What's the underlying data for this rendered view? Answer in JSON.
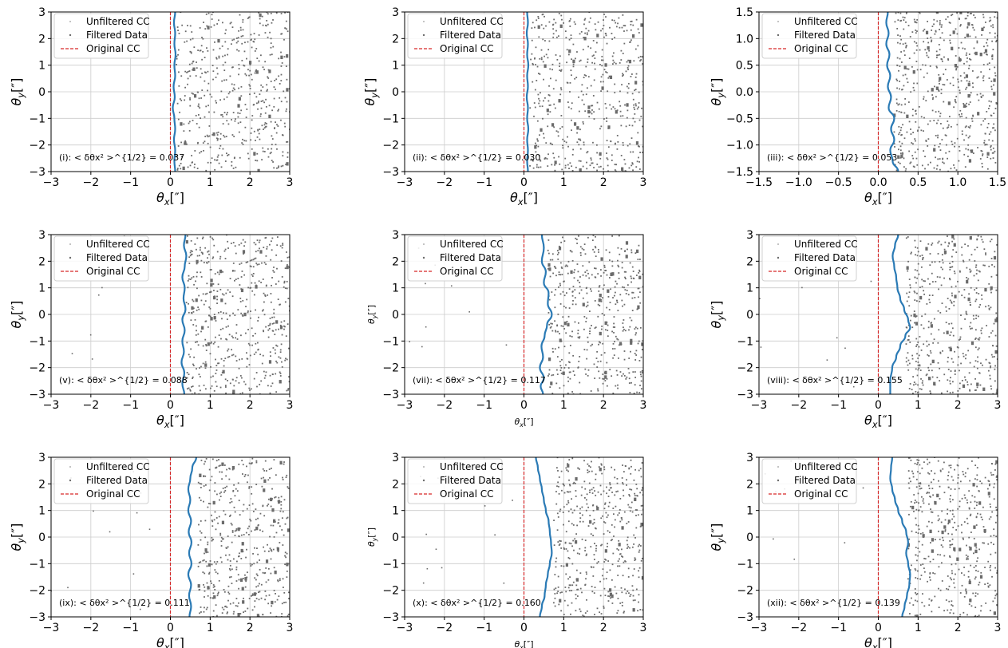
{
  "figure": {
    "legend_items": [
      "Unfiltered CC",
      "Filtered Data",
      "Original CC"
    ]
  },
  "colors": {
    "curve": "#2a7ab5",
    "original_cc": "#d62728",
    "points": "#6b6b6b",
    "grid": "#cccccc"
  },
  "chart_data": [
    {
      "type": "scatter",
      "panel": "(i)",
      "annotation": "(i): < δθx² >^{1/2} = 0.037",
      "xlabel": "θx[″]",
      "ylabel": "θy[″]",
      "xlim": [
        -3,
        3
      ],
      "ylim": [
        -3,
        3
      ],
      "xticks": [
        "−3",
        "−2",
        "−1",
        "0",
        "1",
        "2",
        "3"
      ],
      "yticks": [
        "3",
        "2",
        "1",
        "0",
        "−1",
        "−2",
        "−3"
      ],
      "legend": {
        "entries": [
          "Unfiltered CC",
          "Filtered Data",
          "Original CC"
        ],
        "placement": "top-left"
      },
      "grid": true,
      "original_cc_x": 0,
      "series": [
        {
          "name": "Unfiltered CC",
          "kind": "line",
          "points": [
            [
              0.12,
              3
            ],
            [
              0.09,
              2.6
            ],
            [
              0.12,
              2.2
            ],
            [
              0.1,
              1.8
            ],
            [
              0.13,
              1.4
            ],
            [
              0.1,
              1.0
            ],
            [
              0.12,
              0.6
            ],
            [
              0.08,
              0.2
            ],
            [
              0.11,
              -0.2
            ],
            [
              0.06,
              -0.6
            ],
            [
              0.1,
              -1.0
            ],
            [
              0.12,
              -1.4
            ],
            [
              0.09,
              -1.8
            ],
            [
              0.12,
              -2.2
            ],
            [
              0.1,
              -2.6
            ],
            [
              0.12,
              -3
            ]
          ]
        },
        {
          "name": "Filtered Data",
          "kind": "scatter",
          "x_range": [
            0.15,
            3
          ],
          "count": 520,
          "seed": 1
        }
      ]
    },
    {
      "type": "scatter",
      "panel": "(ii)",
      "annotation": "(ii): < δθx² >^{1/2} = 0.030",
      "xlabel": "θx[″]",
      "ylabel": "θy[″]",
      "xlim": [
        -3,
        3
      ],
      "ylim": [
        -3,
        3
      ],
      "xticks": [
        "−3",
        "−2",
        "−1",
        "0",
        "1",
        "2",
        "3"
      ],
      "yticks": [
        "3",
        "2",
        "1",
        "0",
        "−1",
        "−2",
        "−3"
      ],
      "legend": {
        "entries": [
          "Unfiltered CC",
          "Filtered Data",
          "Original CC"
        ],
        "placement": "top-left"
      },
      "grid": true,
      "original_cc_x": 0,
      "series": [
        {
          "name": "Unfiltered CC",
          "kind": "line",
          "points": [
            [
              0.08,
              3
            ],
            [
              0.1,
              2.6
            ],
            [
              0.07,
              2.2
            ],
            [
              0.1,
              1.8
            ],
            [
              0.08,
              1.4
            ],
            [
              0.11,
              1.0
            ],
            [
              0.08,
              0.6
            ],
            [
              0.1,
              0.2
            ],
            [
              0.07,
              -0.2
            ],
            [
              0.1,
              -0.6
            ],
            [
              0.08,
              -1.0
            ],
            [
              0.11,
              -1.4
            ],
            [
              0.08,
              -1.8
            ],
            [
              0.1,
              -2.2
            ],
            [
              0.08,
              -2.6
            ],
            [
              0.1,
              -3
            ]
          ]
        },
        {
          "name": "Filtered Data",
          "kind": "scatter",
          "x_range": [
            0.15,
            3
          ],
          "count": 520,
          "seed": 2
        }
      ]
    },
    {
      "type": "scatter",
      "panel": "(iii)",
      "annotation": "(iii): < δθx² >^{1/2} = 0.053",
      "xlabel": "θx[″]",
      "ylabel": "θy[″]",
      "xlim": [
        -1.5,
        1.5
      ],
      "ylim": [
        -1.5,
        1.5
      ],
      "xticks": [
        "−1.5",
        "−1.0",
        "−0.5",
        "0.0",
        "0.5",
        "1.0",
        "1.5"
      ],
      "yticks": [
        "1.5",
        "1.0",
        "0.5",
        "0.0",
        "−0.5",
        "−1.0",
        "−1.5"
      ],
      "legend": {
        "entries": [
          "Unfiltered CC",
          "Filtered Data",
          "Original CC"
        ],
        "placement": "top-left"
      },
      "grid": true,
      "original_cc_x": 0,
      "series": [
        {
          "name": "Unfiltered CC",
          "kind": "line",
          "points": [
            [
              0.12,
              1.5
            ],
            [
              0.1,
              1.3
            ],
            [
              0.13,
              1.1
            ],
            [
              0.1,
              0.9
            ],
            [
              0.14,
              0.7
            ],
            [
              0.11,
              0.5
            ],
            [
              0.15,
              0.3
            ],
            [
              0.12,
              0.1
            ],
            [
              0.16,
              -0.1
            ],
            [
              0.13,
              -0.3
            ],
            [
              0.2,
              -0.5
            ],
            [
              0.16,
              -0.7
            ],
            [
              0.2,
              -0.9
            ],
            [
              0.15,
              -1.1
            ],
            [
              0.18,
              -1.3
            ],
            [
              0.25,
              -1.5
            ]
          ]
        },
        {
          "name": "Filtered Data",
          "kind": "scatter",
          "x_range": [
            0.2,
            1.5
          ],
          "count": 560,
          "seed": 3
        }
      ]
    },
    {
      "type": "scatter",
      "panel": "(v)",
      "annotation": "(v): < δθx² >^{1/2} = 0.088",
      "xlabel": "θx[″]",
      "ylabel": "θy[″]",
      "xlim": [
        -3,
        3
      ],
      "ylim": [
        -3,
        3
      ],
      "xticks": [
        "−3",
        "−2",
        "−1",
        "0",
        "1",
        "2",
        "3"
      ],
      "yticks": [
        "3",
        "2",
        "1",
        "0",
        "−1",
        "−2",
        "−3"
      ],
      "legend": {
        "entries": [
          "Unfiltered CC",
          "Filtered Data",
          "Original CC"
        ],
        "placement": "top-left"
      },
      "grid": true,
      "original_cc_x": 0,
      "series": [
        {
          "name": "Unfiltered CC",
          "kind": "line",
          "points": [
            [
              0.38,
              3
            ],
            [
              0.34,
              2.6
            ],
            [
              0.4,
              2.2
            ],
            [
              0.36,
              1.8
            ],
            [
              0.3,
              1.4
            ],
            [
              0.36,
              1.0
            ],
            [
              0.33,
              0.6
            ],
            [
              0.38,
              0.2
            ],
            [
              0.3,
              -0.2
            ],
            [
              0.36,
              -0.6
            ],
            [
              0.3,
              -1.0
            ],
            [
              0.34,
              -1.4
            ],
            [
              0.28,
              -1.8
            ],
            [
              0.35,
              -2.2
            ],
            [
              0.3,
              -2.6
            ],
            [
              0.35,
              -3
            ]
          ]
        },
        {
          "name": "Filtered Data",
          "kind": "scatter",
          "x_range": [
            0.4,
            3
          ],
          "count": 520,
          "seed": 4,
          "sparse_left": 7
        }
      ]
    },
    {
      "type": "scatter",
      "panel": "(vii)",
      "annotation": "(vii): < δθx² >^{1/2} = 0.117",
      "xlabel": "θx[″]",
      "ylabel": "θy[″]",
      "xlim": [
        -3,
        3
      ],
      "ylim": [
        -3,
        3
      ],
      "xticks": [
        "−3",
        "−2",
        "−1",
        "0",
        "1",
        "2",
        "3"
      ],
      "yticks": [
        "3",
        "2",
        "1",
        "0",
        "−1",
        "−2",
        "−3"
      ],
      "legend": {
        "entries": [
          "Unfiltered CC",
          "Filtered Data",
          "Original CC"
        ],
        "placement": "top-left"
      },
      "grid": true,
      "original_cc_x": 0,
      "series": [
        {
          "name": "Unfiltered CC",
          "kind": "line",
          "points": [
            [
              0.45,
              3
            ],
            [
              0.5,
              2.5
            ],
            [
              0.45,
              2.0
            ],
            [
              0.55,
              1.6
            ],
            [
              0.5,
              1.2
            ],
            [
              0.62,
              0.8
            ],
            [
              0.6,
              0.4
            ],
            [
              0.7,
              0.0
            ],
            [
              0.58,
              -0.4
            ],
            [
              0.52,
              -0.8
            ],
            [
              0.44,
              -1.2
            ],
            [
              0.48,
              -1.6
            ],
            [
              0.4,
              -2.0
            ],
            [
              0.5,
              -2.4
            ],
            [
              0.42,
              -2.7
            ],
            [
              0.48,
              -3
            ]
          ]
        },
        {
          "name": "Filtered Data",
          "kind": "scatter",
          "x_range": [
            0.6,
            3
          ],
          "count": 480,
          "seed": 5,
          "sparse_left": 10
        }
      ]
    },
    {
      "type": "scatter",
      "panel": "(viii)",
      "annotation": "(viii): < δθx² >^{1/2} = 0.155",
      "xlabel": "θx[″]",
      "ylabel": "θy[″]",
      "xlim": [
        -3,
        3
      ],
      "ylim": [
        -3,
        3
      ],
      "xticks": [
        "−3",
        "−2",
        "−1",
        "0",
        "1",
        "2",
        "3"
      ],
      "yticks": [
        "3",
        "2",
        "1",
        "0",
        "−1",
        "−2",
        "−3"
      ],
      "legend": {
        "entries": [
          "Unfiltered CC",
          "Filtered Data",
          "Original CC"
        ],
        "placement": "top-left"
      },
      "grid": true,
      "original_cc_x": 0,
      "series": [
        {
          "name": "Unfiltered CC",
          "kind": "line",
          "points": [
            [
              0.5,
              3
            ],
            [
              0.42,
              2.6
            ],
            [
              0.36,
              2.2
            ],
            [
              0.4,
              1.8
            ],
            [
              0.45,
              1.4
            ],
            [
              0.48,
              1.0
            ],
            [
              0.55,
              0.6
            ],
            [
              0.65,
              0.2
            ],
            [
              0.75,
              -0.2
            ],
            [
              0.8,
              -0.5
            ],
            [
              0.68,
              -0.8
            ],
            [
              0.55,
              -1.2
            ],
            [
              0.45,
              -1.6
            ],
            [
              0.35,
              -2.0
            ],
            [
              0.3,
              -2.5
            ],
            [
              0.3,
              -3
            ]
          ]
        },
        {
          "name": "Filtered Data",
          "kind": "scatter",
          "x_range": [
            0.7,
            3
          ],
          "count": 460,
          "seed": 6,
          "sparse_left": 8
        }
      ]
    },
    {
      "type": "scatter",
      "panel": "(ix)",
      "annotation": "(ix): < δθx² >^{1/2} = 0.111",
      "xlabel": "θx[″]",
      "ylabel": "θy[″]",
      "xlim": [
        -3,
        3
      ],
      "ylim": [
        -3,
        3
      ],
      "xticks": [
        "−3",
        "−2",
        "−1",
        "0",
        "1",
        "2",
        "3"
      ],
      "yticks": [
        "3",
        "2",
        "1",
        "0",
        "−1",
        "−2",
        "−3"
      ],
      "legend": {
        "entries": [
          "Unfiltered CC",
          "Filtered Data",
          "Original CC"
        ],
        "placement": "top-left"
      },
      "grid": true,
      "original_cc_x": 0,
      "series": [
        {
          "name": "Unfiltered CC",
          "kind": "line",
          "points": [
            [
              0.65,
              3
            ],
            [
              0.55,
              2.6
            ],
            [
              0.5,
              2.2
            ],
            [
              0.45,
              1.8
            ],
            [
              0.5,
              1.4
            ],
            [
              0.45,
              1.0
            ],
            [
              0.52,
              0.6
            ],
            [
              0.46,
              0.2
            ],
            [
              0.53,
              -0.2
            ],
            [
              0.47,
              -0.6
            ],
            [
              0.53,
              -1.0
            ],
            [
              0.45,
              -1.4
            ],
            [
              0.52,
              -1.8
            ],
            [
              0.47,
              -2.2
            ],
            [
              0.52,
              -2.6
            ],
            [
              0.48,
              -3
            ]
          ]
        },
        {
          "name": "Filtered Data",
          "kind": "scatter",
          "x_range": [
            0.7,
            3
          ],
          "count": 470,
          "seed": 7,
          "sparse_left": 12
        }
      ]
    },
    {
      "type": "scatter",
      "panel": "(x)",
      "annotation": "(x): < δθx² >^{1/2} = 0.160",
      "xlabel": "θx[″]",
      "ylabel": "θy[″]",
      "xlim": [
        -3,
        3
      ],
      "ylim": [
        -3,
        3
      ],
      "xticks": [
        "−3",
        "−2",
        "−1",
        "0",
        "1",
        "2",
        "3"
      ],
      "yticks": [
        "3",
        "2",
        "1",
        "0",
        "−1",
        "−2",
        "−3"
      ],
      "legend": {
        "entries": [
          "Unfiltered CC",
          "Filtered Data",
          "Original CC"
        ],
        "placement": "top-left"
      },
      "grid": true,
      "original_cc_x": 0,
      "series": [
        {
          "name": "Unfiltered CC",
          "kind": "line",
          "points": [
            [
              0.3,
              3
            ],
            [
              0.35,
              2.6
            ],
            [
              0.4,
              2.2
            ],
            [
              0.45,
              1.8
            ],
            [
              0.5,
              1.4
            ],
            [
              0.55,
              1.0
            ],
            [
              0.62,
              0.6
            ],
            [
              0.65,
              0.2
            ],
            [
              0.68,
              -0.2
            ],
            [
              0.7,
              -0.6
            ],
            [
              0.65,
              -1.0
            ],
            [
              0.6,
              -1.4
            ],
            [
              0.55,
              -1.8
            ],
            [
              0.52,
              -2.2
            ],
            [
              0.45,
              -2.6
            ],
            [
              0.4,
              -3
            ]
          ]
        },
        {
          "name": "Filtered Data",
          "kind": "scatter",
          "x_range": [
            0.75,
            3
          ],
          "count": 460,
          "seed": 8,
          "sparse_left": 12
        }
      ]
    },
    {
      "type": "scatter",
      "panel": "(xii)",
      "annotation": "(xii): < δθx² >^{1/2} = 0.139",
      "xlabel": "θx[″]",
      "ylabel": "θy[″]",
      "xlim": [
        -3,
        3
      ],
      "ylim": [
        -3,
        3
      ],
      "xticks": [
        "−3",
        "−2",
        "−1",
        "0",
        "1",
        "2",
        "3"
      ],
      "yticks": [
        "3",
        "2",
        "1",
        "0",
        "−1",
        "−2",
        "−3"
      ],
      "legend": {
        "entries": [
          "Unfiltered CC",
          "Filtered Data",
          "Original CC"
        ],
        "placement": "top-left"
      },
      "grid": true,
      "original_cc_x": 0,
      "series": [
        {
          "name": "Unfiltered CC",
          "kind": "line",
          "points": [
            [
              0.35,
              3
            ],
            [
              0.32,
              2.6
            ],
            [
              0.3,
              2.2
            ],
            [
              0.35,
              1.8
            ],
            [
              0.42,
              1.4
            ],
            [
              0.5,
              1.0
            ],
            [
              0.6,
              0.6
            ],
            [
              0.7,
              0.2
            ],
            [
              0.75,
              -0.2
            ],
            [
              0.7,
              -0.6
            ],
            [
              0.75,
              -1.0
            ],
            [
              0.8,
              -1.4
            ],
            [
              0.78,
              -1.8
            ],
            [
              0.72,
              -2.2
            ],
            [
              0.66,
              -2.6
            ],
            [
              0.6,
              -3
            ]
          ]
        },
        {
          "name": "Filtered Data",
          "kind": "scatter",
          "x_range": [
            0.75,
            3
          ],
          "count": 460,
          "seed": 9,
          "sparse_left": 10
        }
      ]
    }
  ]
}
